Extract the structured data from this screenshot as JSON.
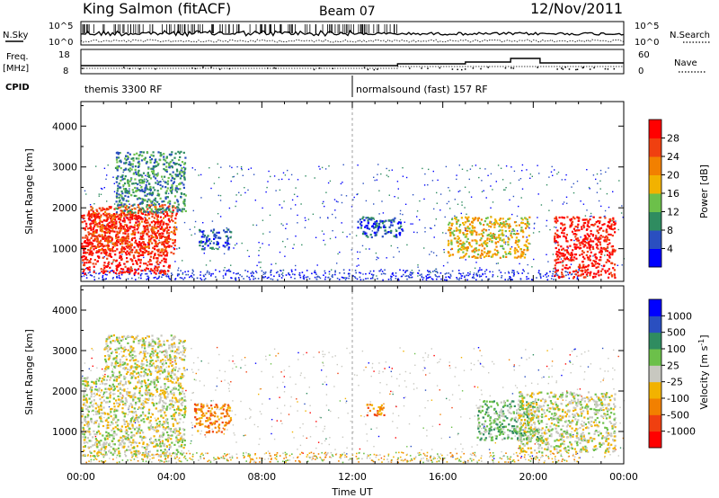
{
  "header": {
    "station": "King Salmon (fitACF)",
    "beam": "Beam 07",
    "date": "12/Nov/2011"
  },
  "side_labels": {
    "n_sky": "N.Sky",
    "n_search": "N.Search",
    "freq": "Freq.",
    "mhz": "[MHz]",
    "nave": "Nave",
    "cpid": "CPID"
  },
  "noise_axis": {
    "left_top": "10^5",
    "left_bottom": "10^0",
    "right_top": "10^5",
    "right_bottom": "10^0"
  },
  "freq_axis": {
    "left_top": "18",
    "left_bottom": "8",
    "right_top": "60",
    "right_bottom": "0"
  },
  "cpid": [
    {
      "label": "themis 3300 RF",
      "start_hour": 0
    },
    {
      "label": "normalsound (fast) 157 RF",
      "start_hour": 12
    }
  ],
  "colors": {
    "scale_colors": [
      "#0000ff",
      "#2a4fc0",
      "#2f8c60",
      "#6cc04a",
      "#f2b200",
      "#f28000",
      "#f04010",
      "#ff0000"
    ],
    "velocity_colors": [
      "#ff0000",
      "#f04010",
      "#f28000",
      "#f2b200",
      "#c8c8c0",
      "#6cc04a",
      "#2f8c60",
      "#2a4fc0",
      "#0000ff"
    ],
    "ground_scatter": "#c8c8c0"
  },
  "chart_data": [
    {
      "type": "heatmap",
      "name": "power",
      "ylabel": "Slant Range [km]",
      "xlabel": "",
      "yticks": [
        "1000",
        "2000",
        "3000",
        "4000"
      ],
      "ylim": [
        200,
        4600
      ],
      "colorbar": {
        "label": "Power [dB]",
        "ticks": [
          "4",
          "8",
          "12",
          "16",
          "20",
          "24",
          "28"
        ],
        "range": [
          0,
          32
        ]
      },
      "blobs": [
        {
          "t0": 0.0,
          "t1": 3.9,
          "r0": 400,
          "r1": 1900,
          "level": 7
        },
        {
          "t0": 0.3,
          "t1": 4.2,
          "r0": 900,
          "r1": 2100,
          "level": 6
        },
        {
          "t0": 1.5,
          "t1": 4.6,
          "r0": 1900,
          "r1": 3400,
          "level": 2
        },
        {
          "t0": 5.2,
          "t1": 6.6,
          "r0": 1000,
          "r1": 1500,
          "level": 1
        },
        {
          "t0": 12.2,
          "t1": 14.2,
          "r0": 1300,
          "r1": 1800,
          "level": 1
        },
        {
          "t0": 16.2,
          "t1": 19.8,
          "r0": 800,
          "r1": 1800,
          "level": 4
        },
        {
          "t0": 20.9,
          "t1": 23.6,
          "r0": 300,
          "r1": 1800,
          "level": 7
        }
      ]
    },
    {
      "type": "heatmap",
      "name": "velocity",
      "ylabel": "Slant Range [km]",
      "xlabel": "Time UT",
      "yticks": [
        "1000",
        "2000",
        "3000",
        "4000"
      ],
      "xticks": [
        "00:00",
        "04:00",
        "08:00",
        "12:00",
        "16:00",
        "20:00",
        "00:00"
      ],
      "xlim": [
        0,
        24
      ],
      "ylim": [
        200,
        4600
      ],
      "colorbar": {
        "label": "Velocity [m s^-1]",
        "ticks": [
          "-1000",
          "-500",
          "-100",
          "-25",
          "25",
          "100",
          "500",
          "1000"
        ],
        "range": [
          -1200,
          1200
        ]
      },
      "blobs": [
        {
          "t0": 0.0,
          "t1": 4.6,
          "r0": 400,
          "r1": 2400,
          "level": 4
        },
        {
          "t0": 1.0,
          "t1": 4.6,
          "r0": 2400,
          "r1": 3400,
          "level": 4
        },
        {
          "t0": 5.0,
          "t1": 6.6,
          "r0": 1000,
          "r1": 1700,
          "level": 2
        },
        {
          "t0": 12.6,
          "t1": 13.4,
          "r0": 1400,
          "r1": 1700,
          "level": 2
        },
        {
          "t0": 17.5,
          "t1": 20.3,
          "r0": 800,
          "r1": 1800,
          "level": 5
        },
        {
          "t0": 19.3,
          "t1": 23.6,
          "r0": 500,
          "r1": 2000,
          "level": 4
        }
      ]
    }
  ]
}
